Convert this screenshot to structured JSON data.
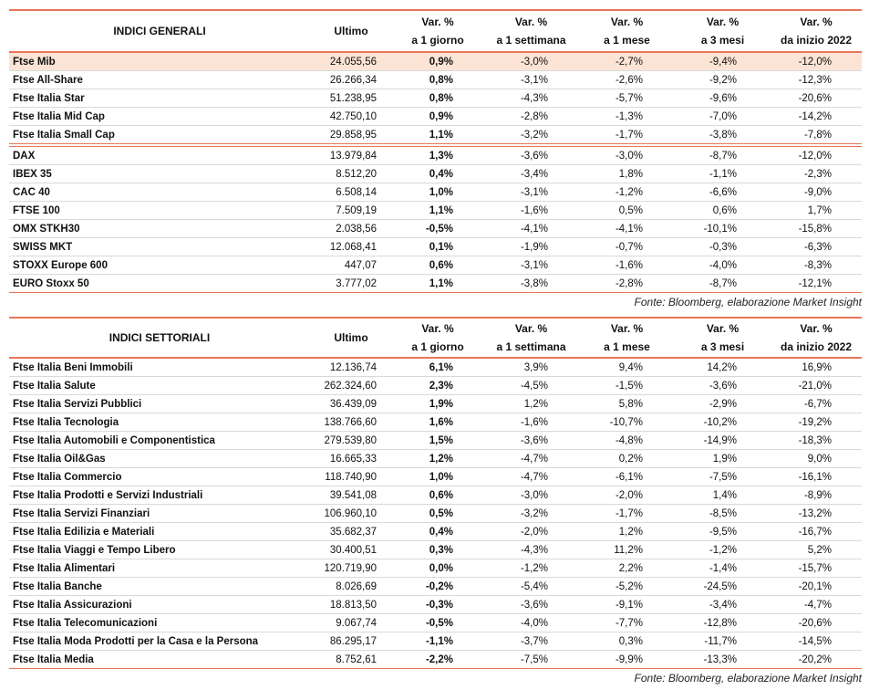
{
  "table1": {
    "headers": [
      [
        "INDICI GENERALI"
      ],
      [
        "Ultimo"
      ],
      [
        "Var. %",
        "a 1 giorno"
      ],
      [
        "Var. %",
        "a 1 settimana"
      ],
      [
        "Var. %",
        "a 1 mese"
      ],
      [
        "Var. %",
        "a 3 mesi"
      ],
      [
        "Var. %",
        "da inizio 2022"
      ]
    ],
    "groups": [
      [
        [
          "Ftse Mib",
          "24.055,56",
          "0,9%",
          "-3,0%",
          "-2,7%",
          "-9,4%",
          "-12,0%"
        ],
        [
          "Ftse All-Share",
          "26.266,34",
          "0,8%",
          "-3,1%",
          "-2,6%",
          "-9,2%",
          "-12,3%"
        ],
        [
          "Ftse Italia Star",
          "51.238,95",
          "0,8%",
          "-4,3%",
          "-5,7%",
          "-9,6%",
          "-20,6%"
        ],
        [
          "Ftse Italia Mid Cap",
          "42.750,10",
          "0,9%",
          "-2,8%",
          "-1,3%",
          "-7,0%",
          "-14,2%"
        ],
        [
          "Ftse Italia Small Cap",
          "29.858,95",
          "1,1%",
          "-3,2%",
          "-1,7%",
          "-3,8%",
          "-7,8%"
        ]
      ],
      [
        [
          "DAX",
          "13.979,84",
          "1,3%",
          "-3,6%",
          "-3,0%",
          "-8,7%",
          "-12,0%"
        ],
        [
          "IBEX 35",
          "8.512,20",
          "0,4%",
          "-3,4%",
          "1,8%",
          "-1,1%",
          "-2,3%"
        ],
        [
          "CAC 40",
          "6.508,14",
          "1,0%",
          "-3,1%",
          "-1,2%",
          "-6,6%",
          "-9,0%"
        ],
        [
          "FTSE 100",
          "7.509,19",
          "1,1%",
          "-1,6%",
          "0,5%",
          "0,6%",
          "1,7%"
        ],
        [
          "OMX STKH30",
          "2.038,56",
          "-0,5%",
          "-4,1%",
          "-4,1%",
          "-10,1%",
          "-15,8%"
        ],
        [
          "SWISS MKT",
          "12.068,41",
          "0,1%",
          "-1,9%",
          "-0,7%",
          "-0,3%",
          "-6,3%"
        ],
        [
          "STOXX Europe 600",
          "447,07",
          "0,6%",
          "-3,1%",
          "-1,6%",
          "-4,0%",
          "-8,3%"
        ],
        [
          "EURO Stoxx 50",
          "3.777,02",
          "1,1%",
          "-3,8%",
          "-2,8%",
          "-8,7%",
          "-12,1%"
        ]
      ]
    ],
    "source": "Fonte: Bloomberg, elaborazione Market Insight"
  },
  "table2": {
    "headers": [
      [
        "INDICI SETTORIALI"
      ],
      [
        "Ultimo"
      ],
      [
        "Var. %",
        "a 1 giorno"
      ],
      [
        "Var. %",
        "a 1 settimana"
      ],
      [
        "Var. %",
        "a 1 mese"
      ],
      [
        "Var. %",
        "a 3 mesi"
      ],
      [
        "Var. %",
        "da inizio 2022"
      ]
    ],
    "groups": [
      [
        [
          "Ftse Italia Beni Immobili",
          "12.136,74",
          "6,1%",
          "3,9%",
          "9,4%",
          "14,2%",
          "16,9%"
        ],
        [
          "Ftse Italia Salute",
          "262.324,60",
          "2,3%",
          "-4,5%",
          "-1,5%",
          "-3,6%",
          "-21,0%"
        ],
        [
          "Ftse Italia Servizi Pubblici",
          "36.439,09",
          "1,9%",
          "1,2%",
          "5,8%",
          "-2,9%",
          "-6,7%"
        ],
        [
          "Ftse Italia Tecnologia",
          "138.766,60",
          "1,6%",
          "-1,6%",
          "-10,7%",
          "-10,2%",
          "-19,2%"
        ],
        [
          "Ftse Italia Automobili e Componentistica",
          "279.539,80",
          "1,5%",
          "-3,6%",
          "-4,8%",
          "-14,9%",
          "-18,3%"
        ],
        [
          "Ftse Italia Oil&Gas",
          "16.665,33",
          "1,2%",
          "-4,7%",
          "0,2%",
          "1,9%",
          "9,0%"
        ],
        [
          "Ftse Italia Commercio",
          "118.740,90",
          "1,0%",
          "-4,7%",
          "-6,1%",
          "-7,5%",
          "-16,1%"
        ],
        [
          "Ftse Italia Prodotti e Servizi Industriali",
          "39.541,08",
          "0,6%",
          "-3,0%",
          "-2,0%",
          "1,4%",
          "-8,9%"
        ],
        [
          "Ftse Italia Servizi Finanziari",
          "106.960,10",
          "0,5%",
          "-3,2%",
          "-1,7%",
          "-8,5%",
          "-13,2%"
        ],
        [
          "Ftse Italia Edilizia e Materiali",
          "35.682,37",
          "0,4%",
          "-2,0%",
          "1,2%",
          "-9,5%",
          "-16,7%"
        ],
        [
          "Ftse Italia Viaggi e Tempo Libero",
          "30.400,51",
          "0,3%",
          "-4,3%",
          "11,2%",
          "-1,2%",
          "5,2%"
        ],
        [
          "Ftse Italia Alimentari",
          "120.719,90",
          "0,0%",
          "-1,2%",
          "2,2%",
          "-1,4%",
          "-15,7%"
        ],
        [
          "Ftse Italia Banche",
          "8.026,69",
          "-0,2%",
          "-5,4%",
          "-5,2%",
          "-24,5%",
          "-20,1%"
        ],
        [
          "Ftse Italia Assicurazioni",
          "18.813,50",
          "-0,3%",
          "-3,6%",
          "-9,1%",
          "-3,4%",
          "-4,7%"
        ],
        [
          "Ftse Italia Telecomunicazioni",
          "9.067,74",
          "-0,5%",
          "-4,0%",
          "-7,7%",
          "-12,8%",
          "-20,6%"
        ],
        [
          "Ftse Italia Moda Prodotti per la Casa e la Persona",
          "86.295,17",
          "-1,1%",
          "-3,7%",
          "0,3%",
          "-11,7%",
          "-14,5%"
        ],
        [
          "Ftse Italia Media",
          "8.752,61",
          "-2,2%",
          "-7,5%",
          "-9,9%",
          "-13,3%",
          "-20,2%"
        ]
      ]
    ],
    "source": "Fonte: Bloomberg, elaborazione Market Insight"
  }
}
